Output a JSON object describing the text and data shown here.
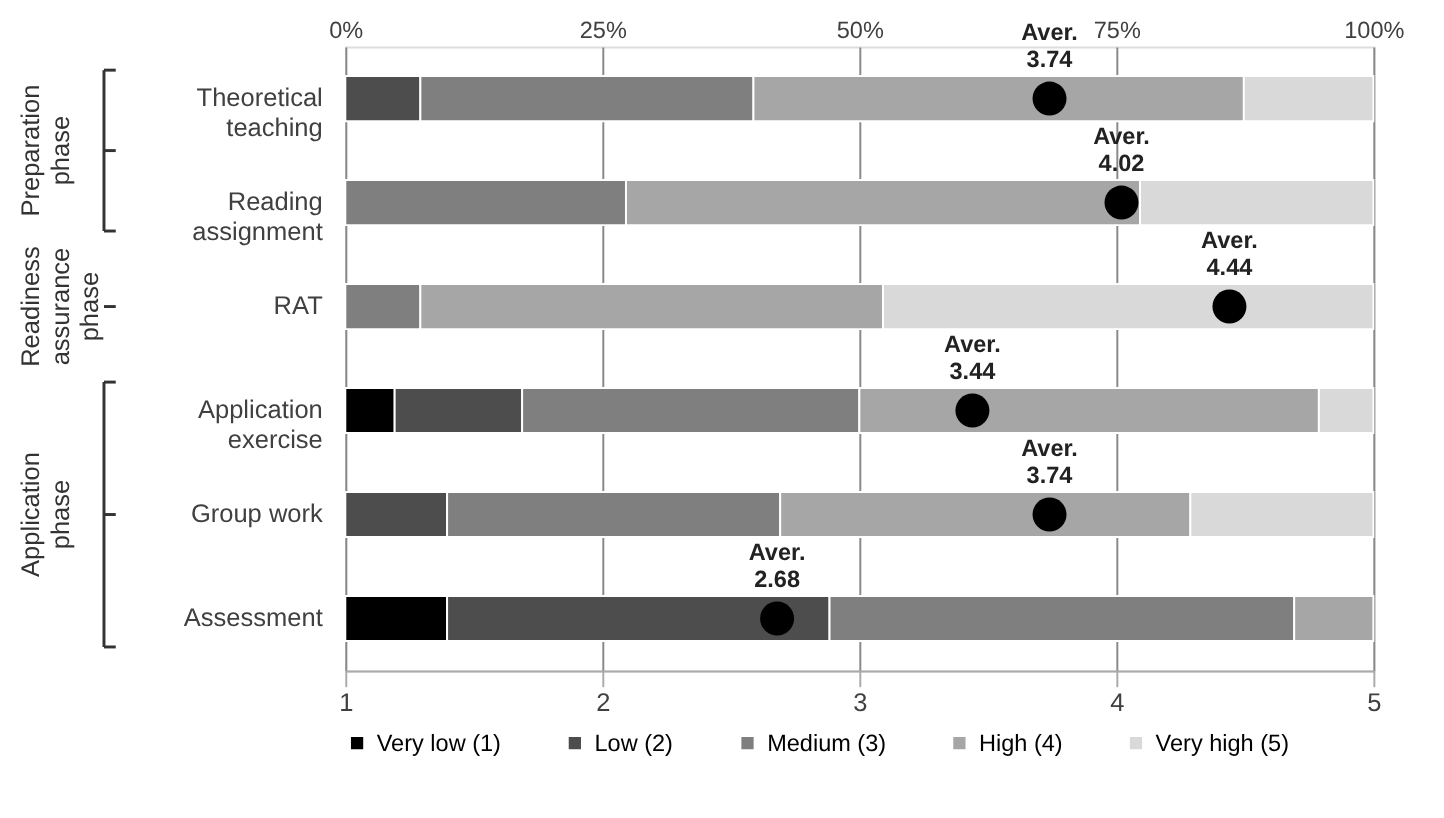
{
  "chart_data": {
    "type": "bar",
    "orientation": "horizontal",
    "stacked": true,
    "categories": [
      "Theoretical teaching",
      "Reading assignment",
      "RAT",
      "Application exercise",
      "Group work",
      "Assessment"
    ],
    "series": [
      {
        "name": "Very low (1)",
        "color": "#000000",
        "values": [
          0,
          0,
          0,
          4.8,
          0,
          9.9
        ]
      },
      {
        "name": "Low (2)",
        "color": "#4d4d4d",
        "values": [
          7.3,
          0,
          0,
          12.4,
          9.9,
          37.2
        ]
      },
      {
        "name": "Medium (3)",
        "color": "#7f7f7f",
        "values": [
          32.4,
          27.3,
          7.3,
          32.8,
          32.4,
          45.2
        ]
      },
      {
        "name": "High (4)",
        "color": "#a6a6a6",
        "values": [
          47.7,
          50.0,
          45.0,
          44.7,
          39.9,
          7.7
        ]
      },
      {
        "name": "Very high (5)",
        "color": "#d9d9d9",
        "values": [
          12.6,
          22.7,
          47.7,
          5.3,
          17.8,
          0
        ]
      },
      {
        "type": "scatter",
        "axis": "x2",
        "color": "#000000",
        "marker": "circle",
        "values": [
          3.74,
          4.02,
          4.44,
          3.44,
          3.74,
          2.68
        ],
        "value_labels": [
          "Aver.\n3.74",
          "Aver.\n4.02",
          "Aver.\n4.44",
          "Aver.\n3.44",
          "Aver.\n3.74",
          "Aver.\n2.68"
        ]
      }
    ],
    "x2lim": [
      1,
      5
    ],
    "x2ticks": [
      1,
      2,
      3,
      4,
      5
    ],
    "xlim": [
      0,
      100
    ],
    "xticks": [
      {
        "value": 0,
        "label": "0%"
      },
      {
        "value": 25,
        "label": "25%"
      },
      {
        "value": 50,
        "label": "50%"
      },
      {
        "value": 75,
        "label": "75%"
      },
      {
        "value": 100,
        "label": "100%"
      }
    ],
    "annotations": [
      "Preparation phase",
      "Readiness assurance phase",
      "Application phase"
    ],
    "grid": "x",
    "legend": "bottom"
  }
}
